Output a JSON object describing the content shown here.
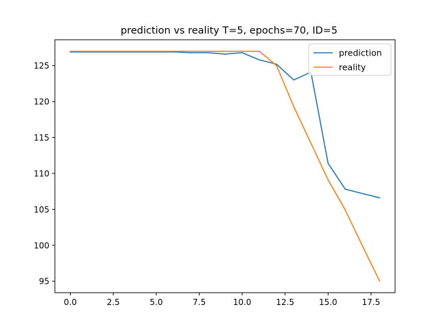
{
  "chart_data": {
    "type": "line",
    "title": "prediction vs reality T=5, epochs=70, ID=5",
    "xlabel": "",
    "ylabel": "",
    "xlim": [
      -0.9,
      18.9
    ],
    "ylim": [
      93.4,
      128.6
    ],
    "x_ticks": [
      0.0,
      2.5,
      5.0,
      7.5,
      10.0,
      12.5,
      15.0,
      17.5
    ],
    "x_tick_labels": [
      "0.0",
      "2.5",
      "5.0",
      "7.5",
      "10.0",
      "12.5",
      "15.0",
      "17.5"
    ],
    "y_ticks": [
      95,
      100,
      105,
      110,
      115,
      120,
      125
    ],
    "y_tick_labels": [
      "95",
      "100",
      "105",
      "110",
      "115",
      "120",
      "125"
    ],
    "grid": false,
    "legend_position": "top-right",
    "series": [
      {
        "name": "prediction",
        "color": "#1f77b4",
        "x": [
          0,
          1,
          2,
          3,
          4,
          5,
          6,
          7,
          8,
          9,
          10,
          11,
          12,
          13,
          14,
          15,
          16,
          17,
          18
        ],
        "y": [
          126.9,
          126.9,
          126.9,
          126.9,
          126.9,
          126.9,
          126.9,
          126.8,
          126.8,
          126.6,
          126.8,
          125.8,
          125.2,
          123.0,
          124.1,
          111.4,
          107.8,
          107.2,
          106.6
        ]
      },
      {
        "name": "reality",
        "color": "#ff7f0e",
        "x": [
          0,
          1,
          2,
          3,
          4,
          5,
          6,
          7,
          8,
          9,
          10,
          11,
          12,
          13,
          14,
          15,
          16,
          17,
          18
        ],
        "y": [
          127.0,
          127.0,
          127.0,
          127.0,
          127.0,
          127.0,
          127.0,
          127.0,
          127.0,
          127.0,
          127.0,
          127.0,
          125.0,
          119.3,
          114.2,
          109.1,
          104.9,
          99.9,
          95.0
        ]
      }
    ]
  }
}
